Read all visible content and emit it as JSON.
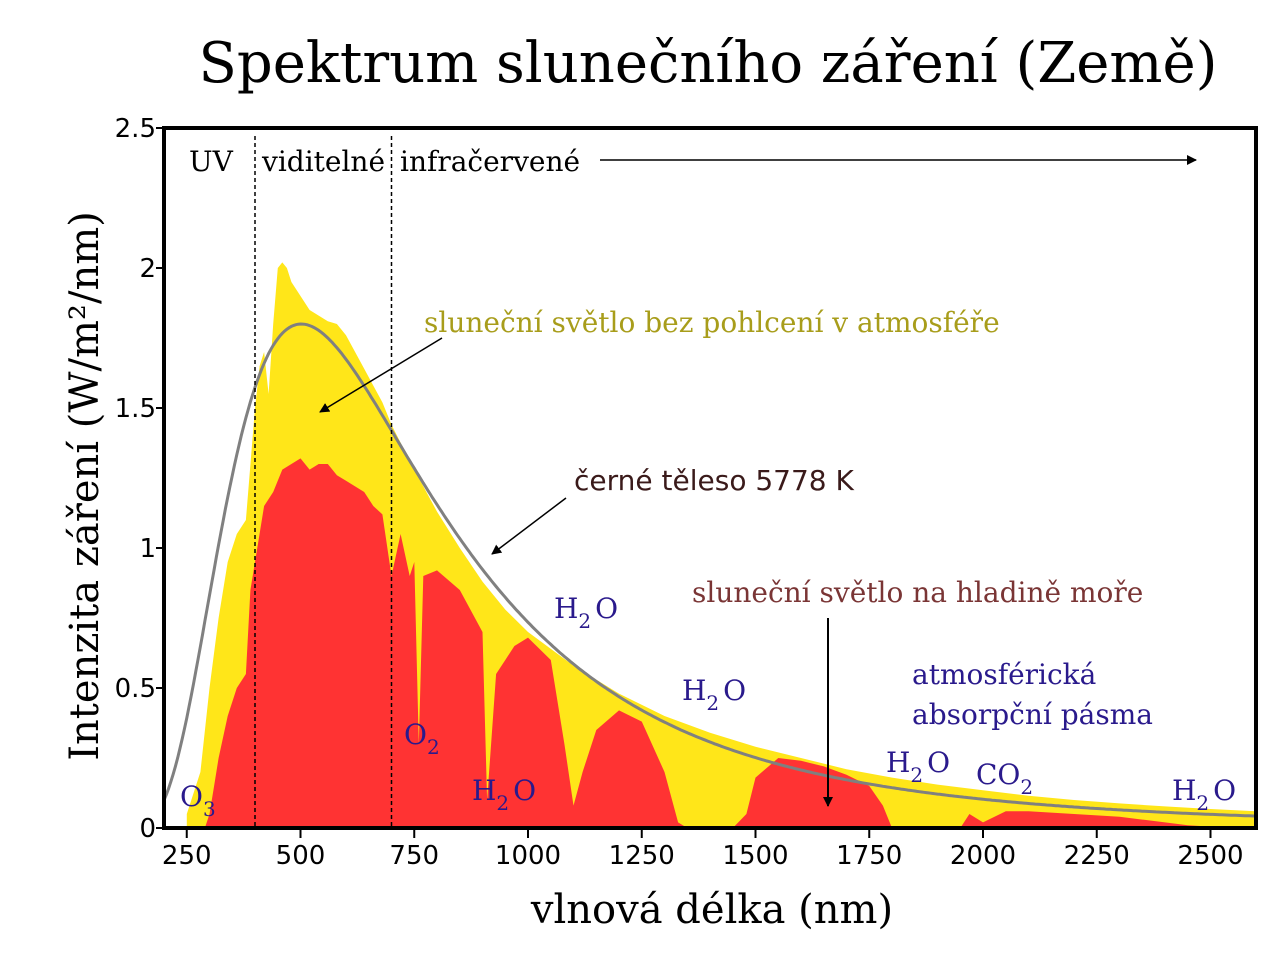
{
  "chart_data": {
    "type": "area",
    "title": "Spektrum slunečního záření (Země)",
    "xlabel": "vlnová délka (nm)",
    "ylabel": "Intenzita záření (W/m²/nm)",
    "xlim": [
      200,
      2600
    ],
    "ylim": [
      0,
      2.5
    ],
    "xticks": [
      250,
      500,
      750,
      1000,
      1250,
      1500,
      1750,
      2000,
      2250,
      2500
    ],
    "yticks": [
      0,
      0.5,
      1,
      1.5,
      2,
      2.5
    ],
    "ytick_labels": [
      "0",
      "0.5",
      "1",
      "1.5",
      "2",
      "2.5"
    ],
    "grid": false,
    "regions": {
      "uv": "UV",
      "visible": "viditelné",
      "infrared": "infračervené",
      "boundaries": [
        400,
        700
      ]
    },
    "series": [
      {
        "name": "sluneční světlo bez pohlcení v atmosféře",
        "color": "#ffe619",
        "x": [
          250,
          280,
          300,
          320,
          340,
          360,
          380,
          400,
          410,
          420,
          430,
          440,
          450,
          460,
          470,
          480,
          500,
          520,
          540,
          560,
          580,
          600,
          620,
          640,
          660,
          680,
          700,
          750,
          800,
          850,
          900,
          950,
          1000,
          1100,
          1200,
          1300,
          1400,
          1500,
          1600,
          1700,
          1800,
          1900,
          2000,
          2100,
          2200,
          2300,
          2400,
          2500,
          2600
        ],
        "values": [
          0.05,
          0.2,
          0.5,
          0.75,
          0.95,
          1.05,
          1.1,
          1.5,
          1.65,
          1.7,
          1.55,
          1.8,
          2.0,
          2.02,
          2.0,
          1.95,
          1.9,
          1.85,
          1.83,
          1.81,
          1.8,
          1.76,
          1.7,
          1.64,
          1.58,
          1.52,
          1.44,
          1.28,
          1.13,
          1.0,
          0.88,
          0.78,
          0.7,
          0.58,
          0.48,
          0.4,
          0.34,
          0.29,
          0.25,
          0.21,
          0.18,
          0.155,
          0.135,
          0.115,
          0.1,
          0.088,
          0.077,
          0.068,
          0.06
        ]
      },
      {
        "name": "sluneční světlo na hladině moře",
        "color": "#ff3333",
        "x": [
          290,
          300,
          310,
          320,
          340,
          360,
          380,
          390,
          400,
          420,
          440,
          460,
          480,
          500,
          520,
          540,
          560,
          580,
          600,
          620,
          640,
          660,
          680,
          700,
          720,
          740,
          750,
          760,
          770,
          800,
          850,
          900,
          910,
          930,
          950,
          970,
          1000,
          1050,
          1080,
          1100,
          1120,
          1150,
          1200,
          1250,
          1300,
          1330,
          1350,
          1400,
          1450,
          1480,
          1500,
          1550,
          1600,
          1650,
          1700,
          1750,
          1780,
          1800,
          1850,
          1900,
          1950,
          1970,
          2000,
          2050,
          2100,
          2150,
          2200,
          2250,
          2300,
          2350,
          2400,
          2450,
          2500,
          2550,
          2600
        ],
        "values": [
          0,
          0.05,
          0.15,
          0.25,
          0.4,
          0.5,
          0.55,
          0.85,
          0.95,
          1.15,
          1.2,
          1.28,
          1.3,
          1.32,
          1.28,
          1.3,
          1.3,
          1.26,
          1.24,
          1.22,
          1.2,
          1.15,
          1.12,
          0.9,
          1.05,
          0.9,
          0.95,
          0.3,
          0.9,
          0.92,
          0.85,
          0.7,
          0.1,
          0.55,
          0.6,
          0.65,
          0.68,
          0.6,
          0.3,
          0.08,
          0.2,
          0.35,
          0.42,
          0.38,
          0.2,
          0.02,
          0.0,
          0.0,
          0.0,
          0.05,
          0.18,
          0.25,
          0.24,
          0.22,
          0.19,
          0.15,
          0.08,
          0.0,
          0.0,
          0.0,
          0.0,
          0.05,
          0.02,
          0.06,
          0.06,
          0.055,
          0.05,
          0.045,
          0.04,
          0.03,
          0.02,
          0.01,
          0.005,
          0.0,
          0.0
        ]
      },
      {
        "name": "černé těleso 5778 K",
        "color": "#808080",
        "type": "line",
        "temperature_K": 5778,
        "peak_value": 1.8,
        "peak_wavelength": 502
      }
    ],
    "absorption_bands": {
      "heading_line1": "atmosférická",
      "heading_line2": "absorpční pásma",
      "items": [
        {
          "base": "O",
          "sub": "3",
          "x": 300
        },
        {
          "base": "O",
          "sub": "2",
          "x": 760
        },
        {
          "base": "H",
          "sub": "2",
          "tail": "O",
          "x": 940
        },
        {
          "base": "H",
          "sub": "2",
          "tail": "O",
          "x": 1120
        },
        {
          "base": "H",
          "sub": "2",
          "tail": "O",
          "x": 1400
        },
        {
          "base": "H",
          "sub": "2",
          "tail": "O",
          "x": 1850
        },
        {
          "base": "CO",
          "sub": "2",
          "x": 2010
        },
        {
          "base": "H",
          "sub": "2",
          "tail": "O",
          "x": 2500
        }
      ]
    },
    "annotations": [
      {
        "text": "sluneční světlo bez pohlcení v atmosféře",
        "color": "#a89d1b"
      },
      {
        "text": "černé těleso 5778 K",
        "color": "#3a1a1a"
      },
      {
        "text": "sluneční světlo na hladině moře",
        "color": "#7a3535"
      }
    ],
    "text_color_bands": "#2a1a8c"
  }
}
